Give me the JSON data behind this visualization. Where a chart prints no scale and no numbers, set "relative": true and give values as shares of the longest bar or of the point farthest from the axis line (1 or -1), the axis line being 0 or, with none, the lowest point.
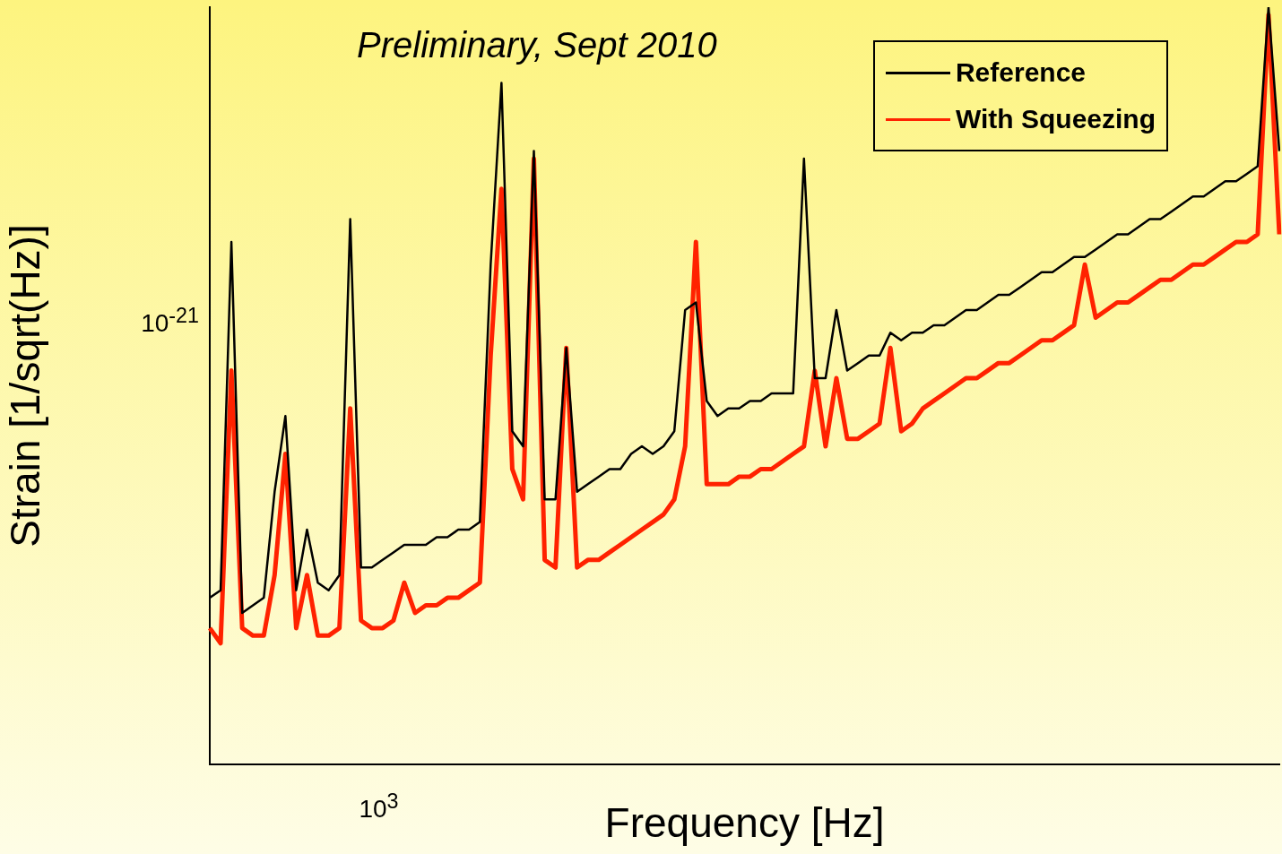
{
  "chart_data": {
    "type": "line",
    "title": "Preliminary, Sept 2010",
    "xlabel": "Frequency [Hz]",
    "ylabel": "Strain [1/sqrt(Hz)]",
    "relative": true,
    "legend": "top right",
    "line_style": "solid",
    "annotations": [
      "10$^{3}$",
      "10$^{-21}$"
    ],
    "categories": [
      null,
      null,
      null,
      null,
      null,
      null,
      null,
      null,
      null,
      null,
      null,
      null,
      null,
      null,
      null,
      null,
      null,
      null,
      null,
      null,
      null,
      null,
      null,
      null,
      null,
      null,
      null,
      null,
      null,
      null,
      null,
      null,
      null,
      null,
      null,
      null,
      null,
      null,
      null,
      null,
      null,
      null,
      null,
      null,
      null,
      null,
      null,
      null,
      null,
      null,
      null,
      null,
      null,
      null,
      null,
      null,
      null,
      null,
      null,
      null,
      null,
      null,
      null,
      null,
      null,
      null,
      null,
      null,
      null,
      null,
      null,
      null,
      null,
      null,
      null,
      null,
      null,
      null,
      null,
      null,
      null,
      null,
      null,
      null,
      null,
      null,
      null,
      null,
      null,
      null,
      null,
      null,
      null,
      null,
      null,
      null,
      null,
      null,
      null,
      null
    ],
    "series": [
      {
        "name": "Reference",
        "color": "#000000",
        "values": [
          0.22,
          0.23,
          0.69,
          0.2,
          0.21,
          0.22,
          0.36,
          0.46,
          0.23,
          0.31,
          0.24,
          0.23,
          0.25,
          0.72,
          0.26,
          0.26,
          0.27,
          0.28,
          0.29,
          0.29,
          0.29,
          0.3,
          0.3,
          0.31,
          0.31,
          0.32,
          0.66,
          0.9,
          0.44,
          0.42,
          0.81,
          0.35,
          0.35,
          0.55,
          0.36,
          0.37,
          0.38,
          0.39,
          0.39,
          0.41,
          0.42,
          0.41,
          0.42,
          0.44,
          0.6,
          0.61,
          0.48,
          0.46,
          0.47,
          0.47,
          0.48,
          0.48,
          0.49,
          0.49,
          0.49,
          0.8,
          0.51,
          0.51,
          0.6,
          0.52,
          0.53,
          0.54,
          0.54,
          0.57,
          0.56,
          0.57,
          0.57,
          0.58,
          0.58,
          0.59,
          0.6,
          0.6,
          0.61,
          0.62,
          0.62,
          0.63,
          0.64,
          0.65,
          0.65,
          0.66,
          0.67,
          0.67,
          0.68,
          0.69,
          0.7,
          0.7,
          0.71,
          0.72,
          0.72,
          0.73,
          0.74,
          0.75,
          0.75,
          0.76,
          0.77,
          0.77,
          0.78,
          0.79,
          1,
          0.81
        ]
      },
      {
        "name": "With Squeezing",
        "color": "#ff2200",
        "values": [
          0.18,
          0.16,
          0.52,
          0.18,
          0.17,
          0.17,
          0.25,
          0.41,
          0.18,
          0.25,
          0.17,
          0.17,
          0.18,
          0.47,
          0.19,
          0.18,
          0.18,
          0.19,
          0.24,
          0.2,
          0.21,
          0.21,
          0.22,
          0.22,
          0.23,
          0.24,
          0.54,
          0.76,
          0.39,
          0.35,
          0.8,
          0.27,
          0.26,
          0.55,
          0.26,
          0.27,
          0.27,
          0.28,
          0.29,
          0.3,
          0.31,
          0.32,
          0.33,
          0.35,
          0.42,
          0.69,
          0.37,
          0.37,
          0.37,
          0.38,
          0.38,
          0.39,
          0.39,
          0.4,
          0.41,
          0.42,
          0.52,
          0.42,
          0.51,
          0.43,
          0.43,
          0.44,
          0.45,
          0.55,
          0.44,
          0.45,
          0.47,
          0.48,
          0.49,
          0.5,
          0.51,
          0.51,
          0.52,
          0.53,
          0.53,
          0.54,
          0.55,
          0.56,
          0.56,
          0.57,
          0.58,
          0.66,
          0.59,
          0.6,
          0.61,
          0.61,
          0.62,
          0.63,
          0.64,
          0.64,
          0.65,
          0.66,
          0.66,
          0.67,
          0.68,
          0.69,
          0.69,
          0.7,
          0.99,
          0.7
        ]
      }
    ]
  }
}
